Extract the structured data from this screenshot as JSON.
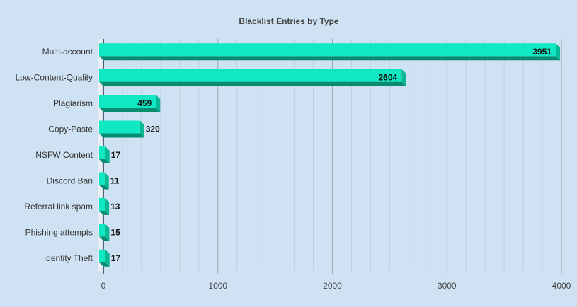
{
  "chart_data": {
    "type": "bar",
    "orientation": "horizontal",
    "title": "Blacklist Entries by Type",
    "xlabel": "",
    "ylabel": "",
    "categories": [
      "Multi-account",
      "Low-Content-Quality",
      "Plagiarism",
      "Copy-Paste",
      "NSFW Content",
      "Discord Ban",
      "Referral link spam",
      "Phishing attempts",
      "Identity Theft"
    ],
    "values": [
      3951,
      2604,
      459,
      320,
      17,
      11,
      13,
      15,
      17
    ],
    "xlim": [
      0,
      4000
    ],
    "xticks": [
      0,
      1000,
      2000,
      3000,
      4000
    ],
    "grid": true,
    "data_labels": true,
    "colors": {
      "background": "#cfe2f3",
      "bar_front": "#0fe8c2",
      "bar_side": "#0bb894",
      "bar_bottom": "#078c72",
      "major_grid": "#9aa8b5",
      "minor_grid": "#bccfe0",
      "axis": "#111111"
    }
  }
}
